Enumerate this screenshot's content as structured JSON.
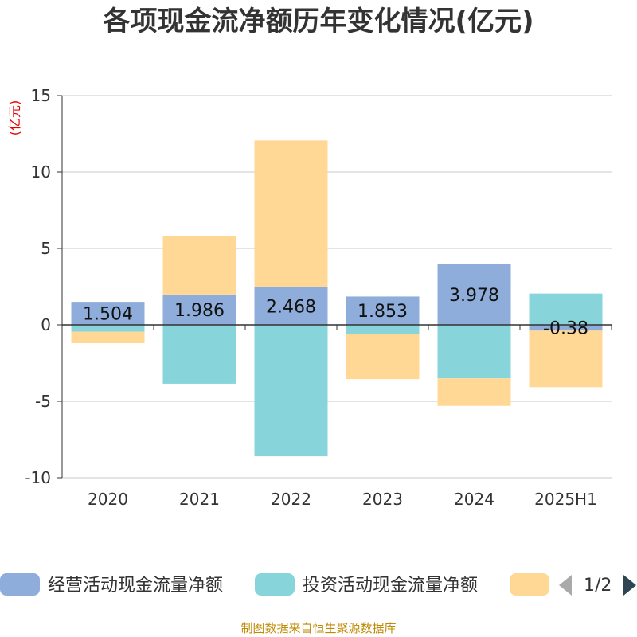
{
  "title": "各项现金流净额历年变化情况(亿元)",
  "source": "制图数据来自恒生聚源数据库",
  "chart_data": {
    "type": "bar",
    "stacked": true,
    "unit_label": "(亿元)",
    "categories": [
      "2020",
      "2021",
      "2022",
      "2023",
      "2024",
      "2025H1"
    ],
    "ylim": [
      -10,
      15
    ],
    "yticks": [
      -10,
      -5,
      0,
      5,
      10,
      15
    ],
    "grid": true,
    "legend_position": "bottom",
    "series": [
      {
        "name": "经营活动现金流量净额",
        "color": "#8fadda",
        "values": [
          1.504,
          1.986,
          2.468,
          1.853,
          3.978,
          -0.38
        ],
        "labels": [
          "1.504",
          "1.986",
          "2.468",
          "1.853",
          "3.978",
          "-0.38"
        ]
      },
      {
        "name": "投资活动现金流量净额",
        "color": "#87d5da",
        "values": [
          -0.45,
          -3.85,
          -8.6,
          -0.6,
          -3.5,
          2.05
        ]
      },
      {
        "name": "",
        "color": "#ffd896",
        "values": [
          -0.75,
          3.8,
          9.6,
          -2.95,
          -1.8,
          -3.7
        ]
      }
    ]
  },
  "legend": {
    "page": "1/2"
  }
}
